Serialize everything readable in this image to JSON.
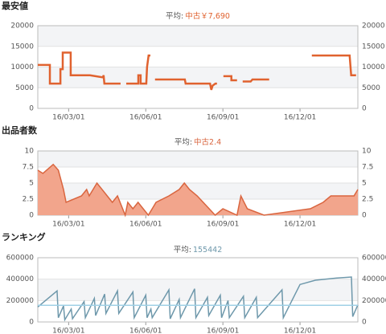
{
  "chart_data": [
    {
      "type": "line",
      "title": "最安値",
      "avg_label": "平均:",
      "avg_value": "中古￥7,690",
      "color": "#e0622f",
      "xlim": [
        1.8,
        14.25
      ],
      "xticks": [
        {
          "value": 3,
          "label": "16/03/01"
        },
        {
          "value": 6,
          "label": "16/06/01"
        },
        {
          "value": 9,
          "label": "16/09/01"
        },
        {
          "value": 12,
          "label": "16/12/01"
        }
      ],
      "ylim": [
        0,
        20000
      ],
      "yticks": [
        0,
        5000,
        10000,
        15000,
        20000
      ],
      "x": [
        1.8,
        2.27,
        2.27,
        2.68,
        2.68,
        2.77,
        2.77,
        3.08,
        3.08,
        3.83,
        4.33,
        4.36,
        4.39,
        5.02,
        5.1,
        5.24,
        5.71,
        5.71,
        5.8,
        5.8,
        6.02,
        6.05,
        6.11,
        6.18,
        6.27,
        6.36,
        7.52,
        7.55,
        8.5,
        8.55,
        8.6,
        8.71,
        8.77,
        8.9,
        9.02,
        9.33,
        9.33,
        9.55,
        9.65,
        9.77,
        10.08,
        10.15,
        10.8,
        11.5,
        12.46,
        13.93,
        13.99,
        14.18
      ],
      "values": [
        10500,
        10500,
        6000,
        6000,
        9500,
        9500,
        13500,
        13500,
        8000,
        8000,
        7500,
        8000,
        6000,
        6000,
        null,
        6000,
        6000,
        8000,
        8000,
        6000,
        6000,
        10000,
        12800,
        12800,
        null,
        7000,
        7000,
        6000,
        6000,
        4500,
        5500,
        6000,
        6000,
        null,
        7800,
        7800,
        6800,
        6800,
        null,
        6500,
        6500,
        7000,
        7000,
        null,
        12800,
        12800,
        8000,
        8000
      ]
    },
    {
      "type": "area",
      "title": "出品者数",
      "avg_label": "平均:",
      "avg_value": "中古2.4",
      "color": "#d9653f",
      "fill": "#f2a58c",
      "xlim": [
        1.8,
        14.25
      ],
      "xticks": [
        {
          "value": 3,
          "label": "16/03/01"
        },
        {
          "value": 6,
          "label": "16/06/01"
        },
        {
          "value": 9,
          "label": "16/09/01"
        },
        {
          "value": 12,
          "label": "16/12/01"
        }
      ],
      "ylim": [
        0,
        10
      ],
      "yticks": [
        0,
        2.5,
        5,
        7.5,
        10
      ],
      "x": [
        1.8,
        2.0,
        2.4,
        2.6,
        2.8,
        2.9,
        3.5,
        3.7,
        3.8,
        4.1,
        4.5,
        4.7,
        4.9,
        5.2,
        5.3,
        5.5,
        5.7,
        5.9,
        6.1,
        6.4,
        6.9,
        7.3,
        7.5,
        7.7,
        8.0,
        8.7,
        9.0,
        9.55,
        9.7,
        9.95,
        10.6,
        12.4,
        12.9,
        13.2,
        14.1,
        14.25
      ],
      "values": [
        7,
        6.5,
        7.9,
        7,
        4,
        2,
        3,
        4,
        3,
        5,
        3,
        2,
        3,
        0,
        2,
        1,
        2,
        1,
        0,
        2,
        3,
        4,
        5,
        4,
        3,
        0,
        1,
        0,
        3,
        1,
        0,
        1,
        2,
        3,
        3,
        4
      ]
    },
    {
      "type": "line",
      "title": "ランキング",
      "avg_label": "平均:",
      "avg_value": 155442,
      "color": "#6e98ab",
      "avg_color": "#9fd0e6",
      "xlim": [
        1.8,
        14.25
      ],
      "xticks": [
        {
          "value": 3,
          "label": "16/03/01"
        },
        {
          "value": 6,
          "label": "16/06/01"
        },
        {
          "value": 9,
          "label": "16/09/01"
        },
        {
          "value": 12,
          "label": "16/12/01"
        }
      ],
      "ylim": [
        0,
        600000
      ],
      "yticks": [
        0,
        200000,
        400000,
        600000
      ],
      "x": [
        1.8,
        2.55,
        2.6,
        2.8,
        2.85,
        3.1,
        3.15,
        3.6,
        3.65,
        4.0,
        4.05,
        4.4,
        4.45,
        4.9,
        4.95,
        5.5,
        5.55,
        6.0,
        6.05,
        6.2,
        6.25,
        6.9,
        6.95,
        7.3,
        7.35,
        7.9,
        7.95,
        8.4,
        8.45,
        8.9,
        8.95,
        9.2,
        9.25,
        9.8,
        9.85,
        10.3,
        10.35,
        11.3,
        11.35,
        12.0,
        12.6,
        13.4,
        14.0,
        14.05,
        14.25
      ],
      "values": [
        140000,
        290000,
        40000,
        150000,
        20000,
        120000,
        30000,
        190000,
        40000,
        220000,
        60000,
        260000,
        80000,
        290000,
        80000,
        280000,
        40000,
        250000,
        40000,
        120000,
        40000,
        300000,
        30000,
        210000,
        40000,
        310000,
        40000,
        230000,
        60000,
        250000,
        40000,
        200000,
        40000,
        240000,
        40000,
        230000,
        40000,
        300000,
        40000,
        350000,
        390000,
        410000,
        420000,
        50000,
        160000
      ]
    }
  ]
}
